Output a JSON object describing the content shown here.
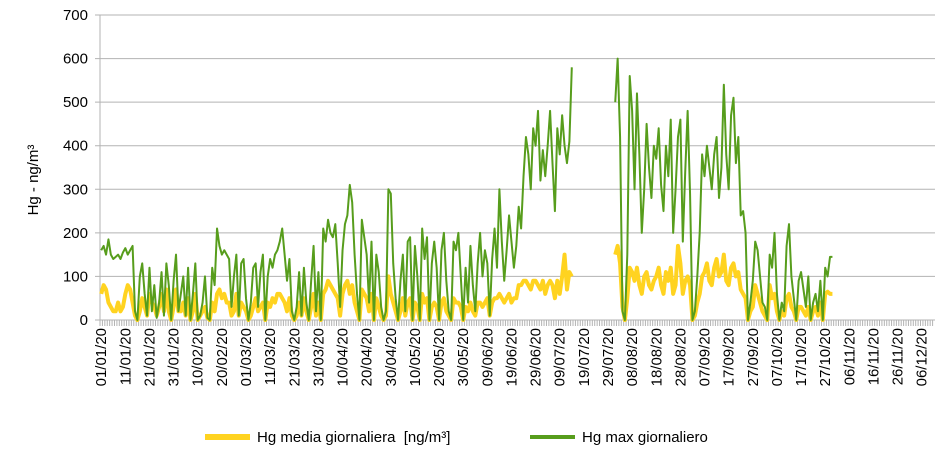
{
  "chart_data": {
    "type": "line",
    "y_label": "Hg - ng/m³",
    "ylim": [
      0,
      700
    ],
    "yticks": [
      0,
      100,
      200,
      300,
      400,
      500,
      600,
      700
    ],
    "grid": true,
    "legend": "bottom",
    "categories": [
      "01/01/20",
      null,
      null,
      null,
      null,
      null,
      null,
      null,
      null,
      null,
      "11/01/20",
      null,
      null,
      null,
      null,
      null,
      null,
      null,
      null,
      null,
      "21/01/20",
      null,
      null,
      null,
      null,
      null,
      null,
      null,
      null,
      null,
      "31/01/20",
      null,
      null,
      null,
      null,
      null,
      null,
      null,
      null,
      null,
      "10/02/20",
      null,
      null,
      null,
      null,
      null,
      null,
      null,
      null,
      null,
      "20/02/20",
      null,
      null,
      null,
      null,
      null,
      null,
      null,
      null,
      null,
      "01/03/20",
      null,
      null,
      null,
      null,
      null,
      null,
      null,
      null,
      null,
      "11/03/20",
      null,
      null,
      null,
      null,
      null,
      null,
      null,
      null,
      null,
      "21/03/20",
      null,
      null,
      null,
      null,
      null,
      null,
      null,
      null,
      null,
      "31/03/20",
      null,
      null,
      null,
      null,
      null,
      null,
      null,
      null,
      null,
      "10/04/20",
      null,
      null,
      null,
      null,
      null,
      null,
      null,
      null,
      null,
      "20/04/20",
      null,
      null,
      null,
      null,
      null,
      null,
      null,
      null,
      null,
      "30/04/20",
      null,
      null,
      null,
      null,
      null,
      null,
      null,
      null,
      null,
      "10/05/20",
      null,
      null,
      null,
      null,
      null,
      null,
      null,
      null,
      null,
      "20/05/20",
      null,
      null,
      null,
      null,
      null,
      null,
      null,
      null,
      null,
      "30/05/20",
      null,
      null,
      null,
      null,
      null,
      null,
      null,
      null,
      null,
      "09/06/20",
      null,
      null,
      null,
      null,
      null,
      null,
      null,
      null,
      null,
      "19/06/20",
      null,
      null,
      null,
      null,
      null,
      null,
      null,
      null,
      null,
      "29/06/20",
      null,
      null,
      null,
      null,
      null,
      null,
      null,
      null,
      null,
      "09/07/20",
      null,
      null,
      null,
      null,
      null,
      null,
      null,
      null,
      null,
      "19/07/20",
      null,
      null,
      null,
      null,
      null,
      null,
      null,
      null,
      null,
      "29/07/20",
      null,
      null,
      null,
      null,
      null,
      null,
      null,
      null,
      null,
      "08/08/20",
      null,
      null,
      null,
      null,
      null,
      null,
      null,
      null,
      null,
      "18/08/20",
      null,
      null,
      null,
      null,
      null,
      null,
      null,
      null,
      null,
      "28/08/20",
      null,
      null,
      null,
      null,
      null,
      null,
      null,
      null,
      null,
      "07/09/20",
      null,
      null,
      null,
      null,
      null,
      null,
      null,
      null,
      null,
      "17/09/20",
      null,
      null,
      null,
      null,
      null,
      null,
      null,
      null,
      null,
      "27/09/20",
      null,
      null,
      null,
      null,
      null,
      null,
      null,
      null,
      null,
      "07/10/20",
      null,
      null,
      null,
      null,
      null,
      null,
      null,
      null,
      null,
      "17/10/20",
      null,
      null,
      null,
      null,
      null,
      null,
      null,
      null,
      null,
      "27/10/20",
      null,
      null,
      null,
      null,
      null,
      null,
      null,
      null,
      null,
      "06/11/20",
      null,
      null,
      null,
      null,
      null,
      null,
      null,
      null,
      null,
      "16/11/20",
      null,
      null,
      null,
      null,
      null,
      null,
      null,
      null,
      null,
      "26/11/20",
      null,
      null,
      null,
      null,
      null,
      null,
      null,
      null,
      null,
      "06/12/20",
      null,
      null,
      null,
      null,
      null
    ],
    "series": [
      {
        "name": "Hg media giornaliera  [ng/m³]",
        "color": "#ffd320",
        "values": [
          60,
          80,
          70,
          40,
          30,
          20,
          20,
          40,
          20,
          30,
          60,
          80,
          70,
          40,
          10,
          0,
          20,
          50,
          30,
          10,
          60,
          40,
          30,
          10,
          30,
          60,
          20,
          70,
          20,
          0,
          30,
          70,
          20,
          20,
          40,
          10,
          50,
          0,
          20,
          60,
          0,
          10,
          20,
          30,
          5,
          0,
          40,
          20,
          60,
          70,
          50,
          60,
          40,
          40,
          10,
          20,
          60,
          10,
          40,
          30,
          20,
          0,
          10,
          30,
          50,
          20,
          30,
          40,
          0,
          40,
          30,
          50,
          40,
          60,
          60,
          50,
          40,
          20,
          50,
          10,
          0,
          10,
          40,
          10,
          50,
          20,
          0,
          30,
          60,
          10,
          40,
          0,
          60,
          70,
          90,
          80,
          70,
          60,
          50,
          10,
          60,
          80,
          90,
          60,
          80,
          40,
          20,
          0,
          70,
          60,
          50,
          20,
          60,
          0,
          50,
          30,
          10,
          0,
          10,
          100,
          60,
          40,
          20,
          0,
          20,
          50,
          10,
          40,
          50,
          0,
          40,
          30,
          0,
          60,
          40,
          50,
          0,
          30,
          40,
          30,
          0,
          40,
          50,
          20,
          10,
          0,
          50,
          40,
          40,
          30,
          0,
          30,
          20,
          40,
          20,
          10,
          40,
          40,
          30,
          40,
          50,
          10,
          40,
          50,
          50,
          60,
          50,
          40,
          50,
          60,
          40,
          50,
          50,
          80,
          80,
          90,
          90,
          80,
          70,
          90,
          90,
          80,
          70,
          90,
          60,
          80,
          90,
          80,
          50,
          90,
          60,
          100,
          150,
          70,
          110,
          100,
          null,
          null,
          null,
          null,
          null,
          null,
          null,
          null,
          null,
          null,
          null,
          null,
          null,
          null,
          null,
          null,
          null,
          150,
          170,
          130,
          30,
          0,
          50,
          120,
          110,
          90,
          120,
          80,
          60,
          100,
          110,
          80,
          70,
          90,
          100,
          120,
          80,
          60,
          110,
          90,
          120,
          60,
          80,
          170,
          130,
          60,
          90,
          100,
          80,
          0,
          10,
          40,
          60,
          100,
          110,
          130,
          90,
          80,
          120,
          140,
          100,
          110,
          150,
          90,
          80,
          120,
          130,
          100,
          110,
          70,
          60,
          50,
          0,
          20,
          30,
          80,
          60,
          40,
          20,
          10,
          0,
          80,
          50,
          60,
          20,
          0,
          20,
          10,
          50,
          60,
          30,
          20,
          0,
          30,
          30,
          20,
          10,
          30,
          0,
          20,
          30,
          10,
          40,
          0,
          60,
          65,
          60,
          60,
          null,
          null,
          null,
          null,
          null,
          null,
          null,
          null,
          null,
          null,
          null,
          null,
          null,
          null,
          null,
          null,
          null,
          null,
          null,
          null,
          null,
          null,
          null,
          null,
          null,
          null,
          null,
          null,
          null,
          null,
          null,
          null,
          null,
          null,
          null,
          null,
          null,
          null,
          null,
          null,
          null,
          null
        ]
      },
      {
        "name": "Hg max giornaliero",
        "color": "#579d1c",
        "values": [
          160,
          170,
          150,
          185,
          150,
          140,
          145,
          150,
          140,
          155,
          165,
          150,
          160,
          170,
          20,
          0,
          100,
          130,
          60,
          10,
          120,
          20,
          80,
          5,
          40,
          110,
          10,
          130,
          80,
          0,
          90,
          150,
          20,
          60,
          100,
          10,
          120,
          0,
          60,
          130,
          0,
          10,
          40,
          100,
          5,
          0,
          120,
          80,
          210,
          170,
          150,
          160,
          150,
          140,
          30,
          100,
          150,
          10,
          130,
          140,
          50,
          0,
          40,
          120,
          130,
          30,
          110,
          150,
          0,
          100,
          140,
          120,
          150,
          160,
          180,
          210,
          150,
          90,
          140,
          20,
          0,
          30,
          110,
          10,
          120,
          40,
          0,
          90,
          170,
          20,
          110,
          0,
          210,
          180,
          230,
          200,
          190,
          220,
          130,
          30,
          160,
          220,
          240,
          310,
          270,
          150,
          60,
          0,
          230,
          190,
          150,
          40,
          180,
          0,
          150,
          110,
          30,
          0,
          20,
          300,
          290,
          130,
          50,
          0,
          90,
          150,
          20,
          180,
          190,
          0,
          170,
          100,
          0,
          210,
          140,
          190,
          0,
          130,
          180,
          120,
          0,
          160,
          200,
          90,
          20,
          0,
          180,
          160,
          200,
          100,
          0,
          120,
          40,
          170,
          80,
          20,
          130,
          200,
          100,
          160,
          130,
          10,
          140,
          210,
          120,
          300,
          180,
          90,
          160,
          240,
          180,
          120,
          170,
          260,
          210,
          330,
          420,
          380,
          300,
          440,
          400,
          480,
          320,
          390,
          330,
          400,
          480,
          360,
          250,
          440,
          380,
          470,
          400,
          360,
          410,
          580,
          null,
          null,
          null,
          null,
          null,
          null,
          null,
          null,
          null,
          null,
          null,
          null,
          null,
          null,
          null,
          null,
          null,
          500,
          600,
          420,
          20,
          0,
          150,
          560,
          480,
          300,
          520,
          380,
          200,
          300,
          450,
          350,
          280,
          400,
          370,
          440,
          310,
          250,
          400,
          330,
          460,
          200,
          300,
          420,
          460,
          180,
          340,
          480,
          290,
          0,
          20,
          100,
          200,
          380,
          330,
          400,
          350,
          300,
          380,
          420,
          280,
          350,
          540,
          380,
          300,
          470,
          510,
          360,
          420,
          240,
          250,
          200,
          0,
          40,
          90,
          180,
          160,
          100,
          40,
          30,
          0,
          150,
          120,
          200,
          60,
          0,
          40,
          20,
          170,
          220,
          100,
          50,
          0,
          90,
          110,
          70,
          30,
          100,
          0,
          40,
          60,
          20,
          90,
          0,
          120,
          100,
          145,
          145,
          null,
          null,
          null,
          null,
          null,
          null,
          null,
          null,
          null,
          null,
          null,
          null,
          null,
          null,
          null,
          null,
          null,
          null,
          null,
          null,
          null,
          null,
          null,
          null,
          null,
          null,
          null,
          null,
          null,
          null,
          null,
          null,
          null,
          null,
          null,
          null,
          null,
          null,
          null,
          null,
          null,
          null
        ]
      }
    ]
  }
}
